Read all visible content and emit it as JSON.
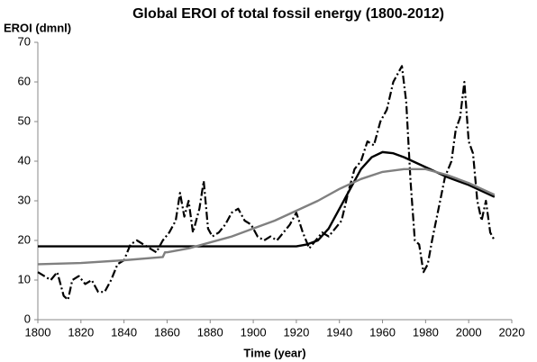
{
  "chart_data": {
    "type": "line",
    "title": "Global EROI of total fossil energy (1800-2012)",
    "ylabel": "EROI (dmnl)",
    "xlabel": "Time (year)",
    "xlim": [
      1800,
      2020
    ],
    "xticks": [
      1800,
      1820,
      1840,
      1860,
      1880,
      1900,
      1920,
      1940,
      1960,
      1980,
      2000,
      2020
    ],
    "ylim": [
      0,
      70
    ],
    "yticks": [
      0,
      10,
      20,
      30,
      40,
      50,
      60,
      70
    ],
    "grid": false,
    "series": [
      {
        "color": "#000000",
        "line_style": "dash-dot",
        "width": 2.2,
        "x": [
          1800,
          1803,
          1806,
          1809,
          1812,
          1814,
          1816,
          1819,
          1822,
          1825,
          1828,
          1831,
          1834,
          1837,
          1840,
          1843,
          1846,
          1849,
          1852,
          1855,
          1858,
          1861,
          1864,
          1866,
          1868,
          1870,
          1872,
          1875,
          1877,
          1879,
          1881,
          1884,
          1887,
          1890,
          1893,
          1896,
          1899,
          1902,
          1905,
          1908,
          1911,
          1914,
          1917,
          1920,
          1923,
          1926,
          1929,
          1932,
          1935,
          1938,
          1941,
          1944,
          1947,
          1950,
          1953,
          1956,
          1959,
          1962,
          1965,
          1969,
          1971,
          1973,
          1975,
          1977,
          1979,
          1981,
          1983,
          1986,
          1989,
          1992,
          1994,
          1996,
          1998,
          2000,
          2002,
          2004,
          2006,
          2008,
          2010,
          2012
        ],
        "values": [
          12,
          11,
          10,
          12,
          6,
          5,
          10,
          11,
          9,
          10,
          7,
          7,
          10,
          14,
          15,
          19,
          20,
          19,
          18,
          17,
          20,
          22,
          25,
          32,
          26,
          30,
          22,
          28,
          35,
          23,
          21,
          22,
          24,
          27,
          28,
          25,
          24,
          21,
          20,
          21,
          20,
          22,
          24,
          27,
          22,
          18,
          20,
          22,
          21,
          23,
          25,
          32,
          38,
          40,
          45,
          44,
          50,
          53,
          60,
          64,
          55,
          35,
          20,
          19,
          12,
          14,
          20,
          28,
          36,
          40,
          48,
          51,
          60,
          45,
          42,
          30,
          25,
          30,
          22,
          20
        ]
      },
      {
        "color": "#000000",
        "line_style": "solid",
        "width": 2.4,
        "x": [
          1800,
          1920,
          1925,
          1930,
          1935,
          1940,
          1945,
          1950,
          1955,
          1960,
          1965,
          1970,
          1980,
          1990,
          2000,
          2012
        ],
        "values": [
          18.5,
          18.5,
          19,
          20,
          23,
          28,
          33,
          38,
          41,
          42.3,
          42,
          41,
          38.5,
          36,
          34,
          31
        ]
      },
      {
        "color": "#808080",
        "line_style": "solid",
        "width": 2.4,
        "x": [
          1800,
          1820,
          1840,
          1858,
          1859,
          1860,
          1870,
          1880,
          1890,
          1900,
          1910,
          1920,
          1930,
          1940,
          1950,
          1960,
          1970,
          1980,
          1990,
          2000,
          2012
        ],
        "values": [
          14,
          14.3,
          15,
          15.8,
          17,
          17,
          18,
          19.5,
          21,
          23,
          25,
          27.5,
          30,
          33,
          35.5,
          37.3,
          38,
          38,
          36.5,
          34.5,
          31.5
        ]
      }
    ]
  }
}
